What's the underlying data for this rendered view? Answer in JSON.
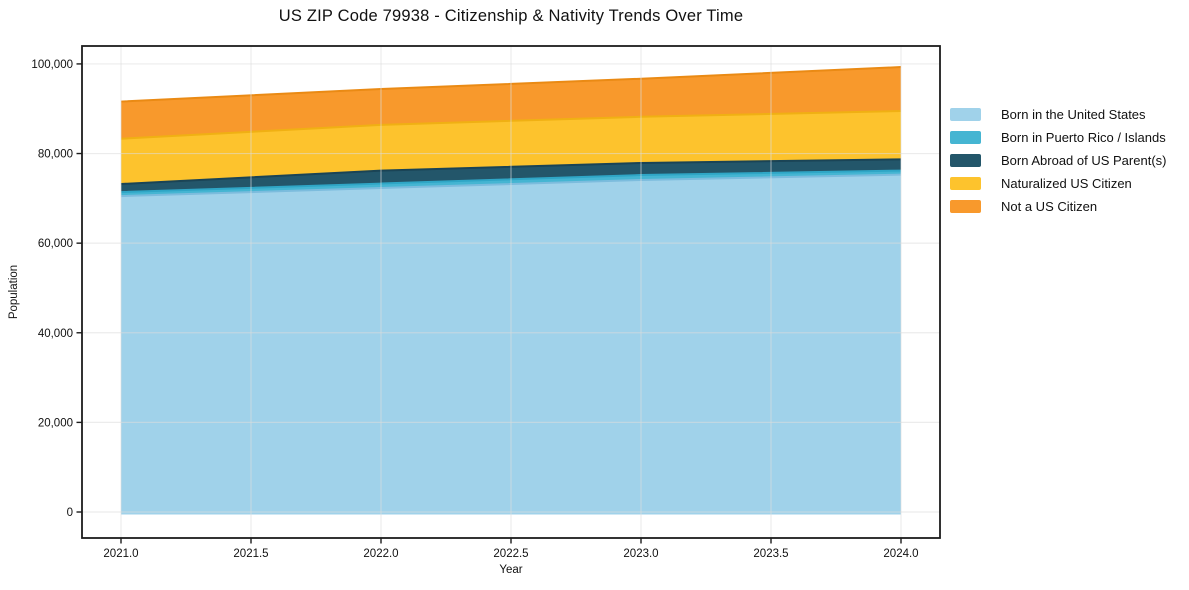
{
  "title": "US ZIP Code 79938 - Citizenship & Nativity Trends Over Time",
  "axes": {
    "xlabel": "Year",
    "ylabel": "Population",
    "x_tick_values": [
      2021.0,
      2021.5,
      2022.0,
      2022.5,
      2023.0,
      2023.5,
      2024.0
    ],
    "x_tick_labels": [
      "2021.0",
      "2021.5",
      "2022.0",
      "2022.5",
      "2023.0",
      "2023.5",
      "2024.0"
    ],
    "y_tick_values": [
      0,
      20000,
      40000,
      60000,
      80000,
      100000
    ],
    "y_tick_labels": [
      "0",
      "20,000",
      "40,000",
      "60,000",
      "80,000",
      "100,000"
    ]
  },
  "chart_data": {
    "type": "area",
    "stacked": true,
    "title": "US ZIP Code 79938 - Citizenship & Nativity Trends Over Time",
    "xlabel": "Year",
    "ylabel": "Population",
    "x": [
      2021,
      2022,
      2023,
      2024
    ],
    "series": [
      {
        "name": "Born in the United States",
        "color": "#a0d2ea",
        "edge_color": "#7cbcdd",
        "values": [
          70500,
          72300,
          74100,
          75300
        ]
      },
      {
        "name": "Born in Puerto Rico / Islands",
        "color": "#45b5d2",
        "edge_color": "#2fa6c6",
        "values": [
          900,
          1000,
          1100,
          900
        ]
      },
      {
        "name": "Born Abroad of US Parent(s)",
        "color": "#23566a",
        "edge_color": "#1a4456",
        "values": [
          1800,
          2900,
          2700,
          2500
        ]
      },
      {
        "name": "Naturalized US Citizen",
        "color": "#fdc32d",
        "edge_color": "#f0b013",
        "values": [
          10100,
          10200,
          10300,
          10800
        ]
      },
      {
        "name": "Not a US Citizen",
        "color": "#f8992c",
        "edge_color": "#ea8a14",
        "values": [
          8300,
          8000,
          8500,
          9800
        ]
      }
    ],
    "stacked_totals": [
      91600,
      94400,
      96700,
      99300
    ],
    "xlim": [
      2020.85,
      2024.15
    ],
    "ylim": [
      -5800,
      104000
    ],
    "grid": true,
    "grid_color": "#dddddd",
    "legend_position": "right-outside",
    "background": "#ffffff",
    "spine_color": "#1c1c1c"
  }
}
